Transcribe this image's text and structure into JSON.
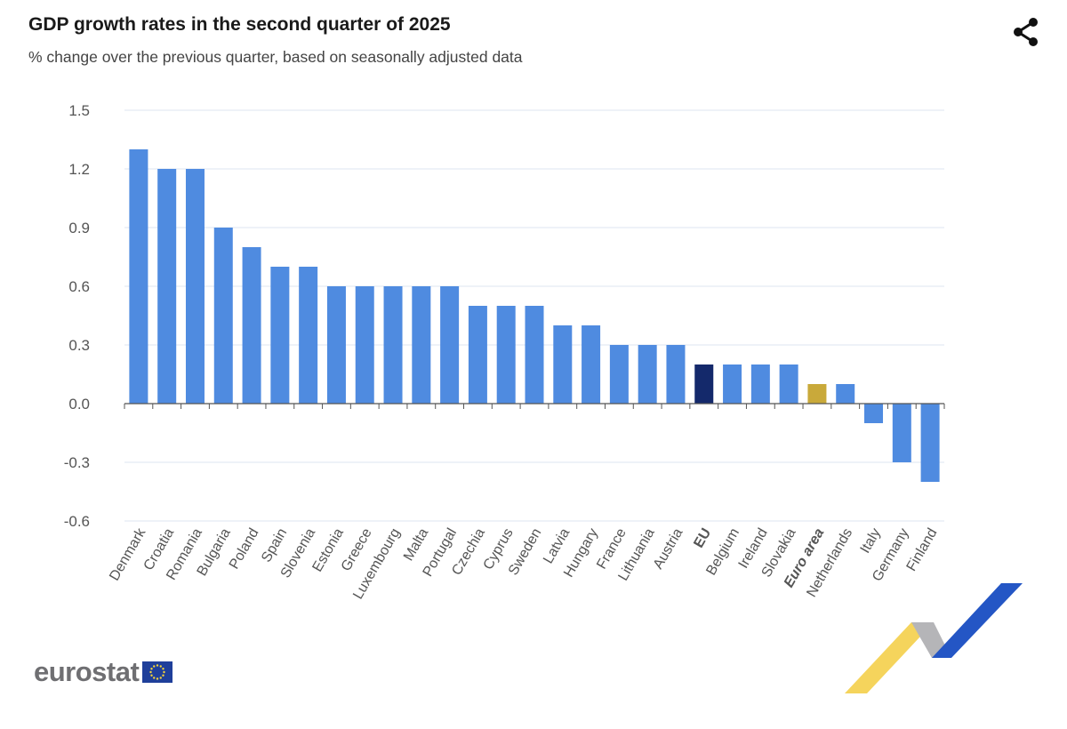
{
  "header": {
    "title": "GDP growth rates in the second quarter of 2025",
    "subtitle": "% change over the previous quarter, based on seasonally adjusted data"
  },
  "icons": {
    "share": "share-icon",
    "eu_flag": "eu-flag-icon"
  },
  "logo": {
    "text": "eurostat"
  },
  "colors": {
    "country_bar": "#4f8be0",
    "eu_bar": "#14296b",
    "euro_area_bar": "#c9a93a",
    "grid": "#dde4f2",
    "text": "#555555"
  },
  "chart_data": {
    "type": "bar",
    "title": "GDP growth rates in the second quarter of 2025",
    "subtitle": "% change over the previous quarter, based on seasonally adjusted data",
    "xlabel": "",
    "ylabel": "",
    "ylim": [
      -0.6,
      1.5
    ],
    "yticks": [
      -0.6,
      -0.3,
      0.0,
      0.3,
      0.6,
      0.9,
      1.2,
      1.5
    ],
    "ytick_labels": [
      "-0.6",
      "-0.3",
      "0.0",
      "0.3",
      "0.6",
      "0.9",
      "1.2",
      "1.5"
    ],
    "grid": true,
    "categories": [
      "Denmark",
      "Croatia",
      "Romania",
      "Bulgaria",
      "Poland",
      "Spain",
      "Slovenia",
      "Estonia",
      "Greece",
      "Luxembourg",
      "Malta",
      "Portugal",
      "Czechia",
      "Cyprus",
      "Sweden",
      "Latvia",
      "Hungary",
      "France",
      "Lithuania",
      "Austria",
      "EU",
      "Belgium",
      "Ireland",
      "Slovakia",
      "Euro area",
      "Netherlands",
      "Italy",
      "Germany",
      "Finland"
    ],
    "values": [
      1.3,
      1.2,
      1.2,
      0.9,
      0.8,
      0.7,
      0.7,
      0.6,
      0.6,
      0.6,
      0.6,
      0.6,
      0.5,
      0.5,
      0.5,
      0.4,
      0.4,
      0.3,
      0.3,
      0.3,
      0.2,
      0.2,
      0.2,
      0.2,
      0.1,
      0.1,
      -0.1,
      -0.3,
      -0.4
    ],
    "highlight": {
      "EU": "eu",
      "Euro area": "euro_area"
    },
    "bold_labels": [
      "EU",
      "Euro area"
    ]
  }
}
